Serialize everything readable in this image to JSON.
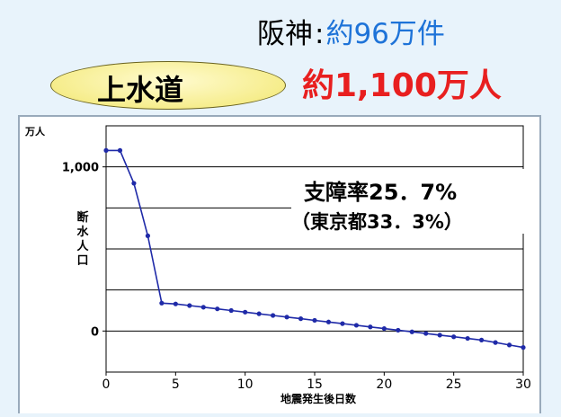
{
  "header": {
    "region": "阪神",
    "colon": ":",
    "count": "約96万件"
  },
  "section": {
    "title": "上水道",
    "affected": "約1,100万人"
  },
  "chart_data": {
    "type": "line",
    "y_unit_label": "万人",
    "ylabel_chars": [
      "断",
      "水",
      "人",
      "口"
    ],
    "xlabel": "地震発生後日数",
    "x_ticks": [
      "0",
      "5",
      "10",
      "15",
      "20",
      "25",
      "30"
    ],
    "y_ticks": [
      {
        "value": 0,
        "label": "0"
      },
      {
        "value": 1000,
        "label": "1,000"
      }
    ],
    "xlim": [
      0,
      30
    ],
    "ylim": [
      -250,
      1250
    ],
    "grid": true,
    "annotation": {
      "line1": "支障率25．7%",
      "line2": "（東京都33．3%）"
    },
    "series": [
      {
        "color": "#1f2aa8",
        "points": [
          [
            0,
            1100
          ],
          [
            1,
            1100
          ],
          [
            2,
            900
          ],
          [
            3,
            580
          ],
          [
            4,
            170
          ],
          [
            5,
            165
          ],
          [
            6,
            155
          ],
          [
            7,
            145
          ],
          [
            8,
            135
          ],
          [
            9,
            125
          ],
          [
            10,
            115
          ],
          [
            11,
            105
          ],
          [
            12,
            95
          ],
          [
            13,
            85
          ],
          [
            14,
            75
          ],
          [
            15,
            65
          ],
          [
            16,
            55
          ],
          [
            17,
            45
          ],
          [
            18,
            35
          ],
          [
            19,
            25
          ],
          [
            20,
            15
          ],
          [
            21,
            5
          ],
          [
            22,
            -5
          ],
          [
            23,
            -15
          ],
          [
            24,
            -25
          ],
          [
            25,
            -35
          ],
          [
            26,
            -45
          ],
          [
            27,
            -55
          ],
          [
            28,
            -70
          ],
          [
            29,
            -85
          ],
          [
            30,
            -100
          ]
        ]
      }
    ]
  }
}
